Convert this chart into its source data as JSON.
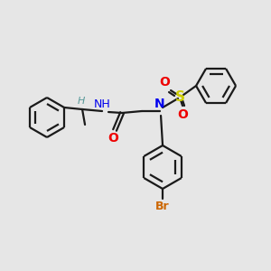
{
  "bg_color": "#e6e6e6",
  "bond_color": "#1a1a1a",
  "atom_colors": {
    "N": "#0000ee",
    "O": "#ee0000",
    "S": "#cccc00",
    "Br": "#cc6600",
    "H_label": "#5a9a9a",
    "C": "#1a1a1a"
  },
  "figsize": [
    3.0,
    3.0
  ],
  "dpi": 100,
  "lw": 1.6,
  "ring_r": 22,
  "bph_r": 24
}
